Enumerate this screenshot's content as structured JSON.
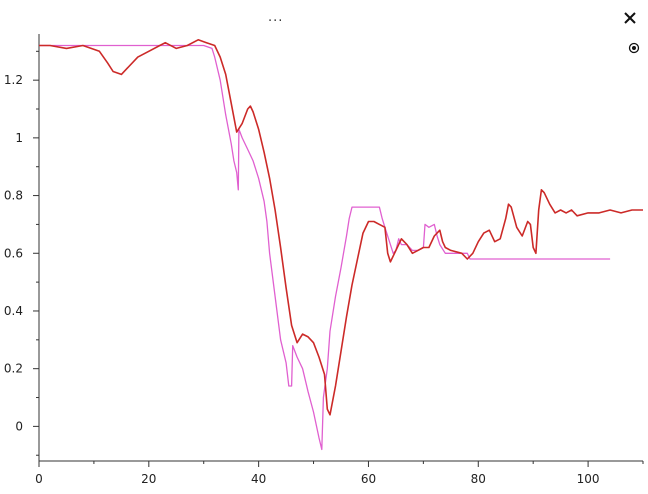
{
  "header": {
    "title": "...",
    "close_icon": "close-icon",
    "pin_icon": "target-icon"
  },
  "chart_data": {
    "type": "line",
    "title": "",
    "xlabel": "",
    "ylabel": "",
    "xlim": [
      0,
      110
    ],
    "ylim": [
      -0.12,
      1.36
    ],
    "grid": false,
    "legend": "none",
    "x_ticks": [
      0,
      20,
      40,
      60,
      80,
      100
    ],
    "y_ticks": [
      0,
      0.2,
      0.4,
      0.6,
      0.8,
      1,
      1.2
    ],
    "x_tick_labels": [
      "0",
      "20",
      "40",
      "60",
      "80",
      "100"
    ],
    "y_tick_labels": [
      "0",
      "0.2",
      "0.4",
      "0.6",
      "0.8",
      "1",
      "1.2"
    ],
    "series": [
      {
        "color": "#e060d0",
        "points": [
          [
            0,
            1.32
          ],
          [
            2,
            1.32
          ],
          [
            10,
            1.32
          ],
          [
            20,
            1.32
          ],
          [
            30,
            1.32
          ],
          [
            31.5,
            1.31
          ],
          [
            32,
            1.28
          ],
          [
            33,
            1.2
          ],
          [
            34,
            1.08
          ],
          [
            35,
            0.98
          ],
          [
            35.5,
            0.92
          ],
          [
            36,
            0.88
          ],
          [
            36.3,
            0.82
          ],
          [
            36.4,
            1.03
          ],
          [
            37,
            1.0
          ],
          [
            38,
            0.96
          ],
          [
            39,
            0.92
          ],
          [
            40,
            0.86
          ],
          [
            41,
            0.78
          ],
          [
            41.5,
            0.71
          ],
          [
            42,
            0.6
          ],
          [
            43,
            0.45
          ],
          [
            44,
            0.3
          ],
          [
            45,
            0.22
          ],
          [
            45.5,
            0.14
          ],
          [
            46,
            0.14
          ],
          [
            46.2,
            0.28
          ],
          [
            47,
            0.24
          ],
          [
            48,
            0.2
          ],
          [
            49,
            0.12
          ],
          [
            50,
            0.05
          ],
          [
            51,
            -0.04
          ],
          [
            51.5,
            -0.08
          ],
          [
            51.8,
            0.1
          ],
          [
            52.5,
            0.2
          ],
          [
            53,
            0.33
          ],
          [
            54,
            0.45
          ],
          [
            55,
            0.55
          ],
          [
            56,
            0.66
          ],
          [
            56.5,
            0.72
          ],
          [
            57,
            0.76
          ],
          [
            62,
            0.76
          ],
          [
            62.5,
            0.72
          ],
          [
            63,
            0.69
          ],
          [
            64,
            0.63
          ],
          [
            64.5,
            0.6
          ],
          [
            65,
            0.61
          ],
          [
            65.5,
            0.65
          ],
          [
            66,
            0.63
          ],
          [
            67,
            0.63
          ],
          [
            68,
            0.61
          ],
          [
            69,
            0.61
          ],
          [
            70,
            0.62
          ],
          [
            70.3,
            0.7
          ],
          [
            71,
            0.69
          ],
          [
            72,
            0.7
          ],
          [
            72.5,
            0.66
          ],
          [
            73,
            0.63
          ],
          [
            74,
            0.6
          ],
          [
            75,
            0.6
          ],
          [
            78,
            0.6
          ],
          [
            78.5,
            0.58
          ],
          [
            90,
            0.58
          ],
          [
            104,
            0.58
          ]
        ]
      },
      {
        "color": "#cc2a28",
        "points": [
          [
            0,
            1.32
          ],
          [
            2,
            1.32
          ],
          [
            5,
            1.31
          ],
          [
            8,
            1.32
          ],
          [
            11,
            1.3
          ],
          [
            12.5,
            1.26
          ],
          [
            13.5,
            1.23
          ],
          [
            15,
            1.22
          ],
          [
            16,
            1.24
          ],
          [
            18,
            1.28
          ],
          [
            20,
            1.3
          ],
          [
            22,
            1.32
          ],
          [
            23,
            1.33
          ],
          [
            25,
            1.31
          ],
          [
            27,
            1.32
          ],
          [
            29,
            1.34
          ],
          [
            30.5,
            1.33
          ],
          [
            32,
            1.32
          ],
          [
            33,
            1.28
          ],
          [
            34,
            1.22
          ],
          [
            35,
            1.12
          ],
          [
            36,
            1.02
          ],
          [
            37,
            1.05
          ],
          [
            38,
            1.1
          ],
          [
            38.5,
            1.11
          ],
          [
            39,
            1.09
          ],
          [
            40,
            1.03
          ],
          [
            41,
            0.95
          ],
          [
            42,
            0.86
          ],
          [
            43,
            0.75
          ],
          [
            44,
            0.62
          ],
          [
            45,
            0.48
          ],
          [
            46,
            0.35
          ],
          [
            47,
            0.29
          ],
          [
            48,
            0.32
          ],
          [
            49,
            0.31
          ],
          [
            50,
            0.29
          ],
          [
            51,
            0.24
          ],
          [
            52,
            0.18
          ],
          [
            52.5,
            0.06
          ],
          [
            53,
            0.04
          ],
          [
            54,
            0.14
          ],
          [
            55,
            0.26
          ],
          [
            56,
            0.38
          ],
          [
            57,
            0.49
          ],
          [
            58,
            0.58
          ],
          [
            59,
            0.67
          ],
          [
            60,
            0.71
          ],
          [
            61,
            0.71
          ],
          [
            62,
            0.7
          ],
          [
            63,
            0.69
          ],
          [
            63.5,
            0.6
          ],
          [
            64,
            0.57
          ],
          [
            65,
            0.61
          ],
          [
            66,
            0.65
          ],
          [
            67,
            0.63
          ],
          [
            68,
            0.6
          ],
          [
            69,
            0.61
          ],
          [
            70,
            0.62
          ],
          [
            71,
            0.62
          ],
          [
            72,
            0.66
          ],
          [
            73,
            0.68
          ],
          [
            73.5,
            0.64
          ],
          [
            74,
            0.62
          ],
          [
            75,
            0.61
          ],
          [
            77,
            0.6
          ],
          [
            78,
            0.58
          ],
          [
            79,
            0.6
          ],
          [
            80,
            0.64
          ],
          [
            81,
            0.67
          ],
          [
            82,
            0.68
          ],
          [
            83,
            0.64
          ],
          [
            84,
            0.65
          ],
          [
            85,
            0.72
          ],
          [
            85.5,
            0.77
          ],
          [
            86,
            0.76
          ],
          [
            87,
            0.69
          ],
          [
            88,
            0.66
          ],
          [
            89,
            0.71
          ],
          [
            89.5,
            0.7
          ],
          [
            90,
            0.62
          ],
          [
            90.5,
            0.6
          ],
          [
            91,
            0.75
          ],
          [
            91.5,
            0.82
          ],
          [
            92,
            0.81
          ],
          [
            93,
            0.77
          ],
          [
            94,
            0.74
          ],
          [
            95,
            0.75
          ],
          [
            96,
            0.74
          ],
          [
            97,
            0.75
          ],
          [
            98,
            0.73
          ],
          [
            100,
            0.74
          ],
          [
            102,
            0.74
          ],
          [
            104,
            0.75
          ],
          [
            106,
            0.74
          ],
          [
            108,
            0.75
          ],
          [
            110,
            0.75
          ]
        ]
      }
    ]
  }
}
